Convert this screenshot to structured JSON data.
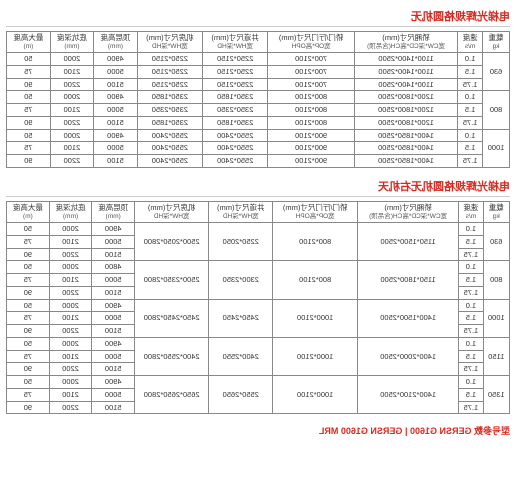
{
  "title1": "电梯光辉规格圆机无",
  "title2": "电梯光辉规格圆机无右机天",
  "model_label": "型号参数",
  "model_value": "GERSN G1600 | GERSN G1600 MRL",
  "headers": {
    "load": "载重",
    "load_unit": "kg",
    "speed": "速度",
    "speed_unit": "m/s",
    "car": "轿厢尺寸(mm)",
    "car_sub": "宽CW*深CD*高CH(含吊顶)",
    "door": "轿门/厅门尺寸(mm)",
    "door_sub": "宽OP*高OPH",
    "shaft": "井道尺寸(mm)",
    "shaft_sub": "宽HW*深HD",
    "mr": "机房尺寸(mm)",
    "mr_sub": "宽HW*深HD",
    "oh": "顶层高度",
    "oh_unit": "(mm)",
    "pit": "底坑深度",
    "pit_unit": "(mm)",
    "maxh": "最大高度",
    "maxh_unit": "(m)"
  },
  "t1": [
    {
      "load": "630",
      "rows": [
        {
          "s": "1.0",
          "car": "1100*1400*2500",
          "door": "700*2100",
          "shaft": "2250*2150",
          "mr": "2250*2150",
          "oh": "4900",
          "pit": "2000",
          "mh": "50"
        },
        {
          "s": "1.5",
          "car": "1100*1400*2500",
          "door": "700*2100",
          "shaft": "2250*2150",
          "mr": "2250*2150",
          "oh": "5000",
          "pit": "2100",
          "mh": "75"
        },
        {
          "s": "1.75",
          "car": "1100*1400*2500",
          "door": "700*2100",
          "shaft": "2250*2150",
          "mr": "2250*2150",
          "oh": "5100",
          "pit": "2200",
          "mh": "90"
        }
      ]
    },
    {
      "load": "800",
      "rows": [
        {
          "s": "1.0",
          "car": "1200*1800*2500",
          "door": "800*2100",
          "shaft": "2350*1850",
          "mr": "2350*1850",
          "oh": "4900",
          "pit": "2000",
          "mh": "50"
        },
        {
          "s": "1.5",
          "car": "1200*1800*2500",
          "door": "800*2100",
          "shaft": "2350*2350",
          "mr": "2350*2350",
          "oh": "5000",
          "pit": "2100",
          "mh": "75"
        },
        {
          "s": "1.75",
          "car": "1200*1800*2500",
          "door": "800*2100",
          "shaft": "2350*1850",
          "mr": "2350*1850",
          "oh": "5100",
          "pit": "2200",
          "mh": "90"
        }
      ]
    },
    {
      "load": "1000",
      "rows": [
        {
          "s": "1.0",
          "car": "1400*1850*2500",
          "door": "900*2100",
          "shaft": "2550*2400",
          "mr": "2550*2400",
          "oh": "4900",
          "pit": "2000",
          "mh": "50"
        },
        {
          "s": "1.5",
          "car": "1400*1850*2500",
          "door": "900*2100",
          "shaft": "2550*2400",
          "mr": "2550*2400",
          "oh": "5000",
          "pit": "2100",
          "mh": "75"
        },
        {
          "s": "1.75",
          "car": "1400*1850*2500",
          "door": "900*2100",
          "shaft": "2550*2400",
          "mr": "2550*2400",
          "oh": "5100",
          "pit": "2200",
          "mh": "90"
        }
      ]
    }
  ],
  "t2": [
    {
      "load": "630",
      "rows": [
        {
          "s": "1.0",
          "car": "1150*1500*2500",
          "door": "800*2100",
          "shaft": "2250*2050",
          "mr": "2500*2050*2800",
          "oh": "4900",
          "pit": "2000",
          "mh": "50"
        },
        {
          "s": "1.5",
          "car": "",
          "door": "",
          "shaft": "",
          "mr": "",
          "oh": "5000",
          "pit": "2100",
          "mh": "75"
        },
        {
          "s": "1.75",
          "car": "",
          "door": "",
          "shaft": "",
          "mr": "",
          "oh": "5100",
          "pit": "2200",
          "mh": "90"
        }
      ]
    },
    {
      "load": "800",
      "rows": [
        {
          "s": "1.0",
          "car": "1150*1800*2500",
          "door": "800*2100",
          "shaft": "2300*2350",
          "mr": "2500*2350*2800",
          "oh": "4800",
          "pit": "2000",
          "mh": "50"
        },
        {
          "s": "1.5",
          "car": "",
          "door": "",
          "shaft": "",
          "mr": "",
          "oh": "5000",
          "pit": "2100",
          "mh": "75"
        },
        {
          "s": "1.75",
          "car": "",
          "door": "",
          "shaft": "",
          "mr": "",
          "oh": "5100",
          "pit": "2200",
          "mh": "90"
        }
      ]
    },
    {
      "load": "1000",
      "rows": [
        {
          "s": "1.0",
          "car": "1400*1500*2500",
          "door": "1000*2100",
          "shaft": "2450*2450",
          "mr": "2450*2450*2800",
          "oh": "4900",
          "pit": "2000",
          "mh": "50"
        },
        {
          "s": "1.5",
          "car": "",
          "door": "",
          "shaft": "",
          "mr": "",
          "oh": "5000",
          "pit": "2100",
          "mh": "75"
        },
        {
          "s": "1.75",
          "car": "",
          "door": "",
          "shaft": "",
          "mr": "",
          "oh": "5100",
          "pit": "2200",
          "mh": "90"
        }
      ]
    },
    {
      "load": "1150",
      "rows": [
        {
          "s": "1.0",
          "car": "1400*2000*2500",
          "door": "1000*2100",
          "shaft": "2400*2550",
          "mr": "2400*2550*2800",
          "oh": "4900",
          "pit": "2000",
          "mh": "50"
        },
        {
          "s": "1.5",
          "car": "",
          "door": "",
          "shaft": "",
          "mr": "",
          "oh": "5000",
          "pit": "2100",
          "mh": "75"
        },
        {
          "s": "1.75",
          "car": "",
          "door": "",
          "shaft": "",
          "mr": "",
          "oh": "5100",
          "pit": "2200",
          "mh": "90"
        }
      ]
    },
    {
      "load": "1350",
      "rows": [
        {
          "s": "1.0",
          "car": "1400*2100*2500",
          "door": "1000*2100",
          "shaft": "2550*2650",
          "mr": "2650*2650*2800",
          "oh": "4900",
          "pit": "2000",
          "mh": "50"
        },
        {
          "s": "1.5",
          "car": "",
          "door": "",
          "shaft": "",
          "mr": "",
          "oh": "5000",
          "pit": "2100",
          "mh": "75"
        },
        {
          "s": "1.75",
          "car": "",
          "door": "",
          "shaft": "",
          "mr": "",
          "oh": "5100",
          "pit": "2200",
          "mh": "90"
        }
      ]
    }
  ]
}
